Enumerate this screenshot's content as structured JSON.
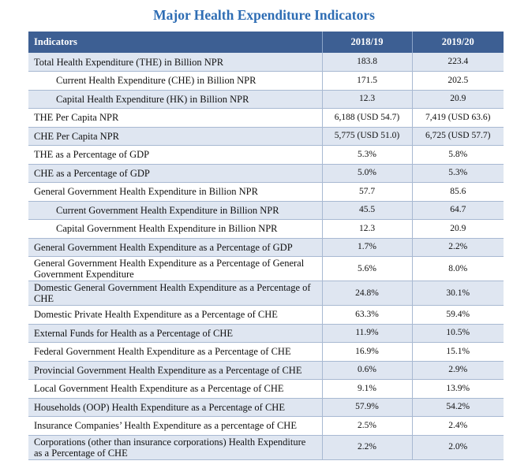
{
  "title": "Major Health Expenditure Indicators",
  "table": {
    "headers": {
      "indicator": "Indicators",
      "year1": "2018/19",
      "year2": "2019/20"
    },
    "rows": [
      {
        "label": "Total Health Expenditure (THE) in Billion NPR",
        "v1": "183.8",
        "v2": "223.4"
      },
      {
        "label": "Current Health Expenditure (CHE) in Billion NPR",
        "v1": "171.5",
        "v2": "202.5"
      },
      {
        "label": "Capital Health Expenditure (HK) in Billion NPR",
        "v1": "12.3",
        "v2": "20.9"
      },
      {
        "label": "THE Per Capita NPR",
        "v1": "6,188 (USD 54.7)",
        "v2": "7,419 (USD 63.6)"
      },
      {
        "label": "CHE Per Capita NPR",
        "v1": "5,775 (USD 51.0)",
        "v2": "6,725 (USD 57.7)"
      },
      {
        "label": "THE as a Percentage of GDP",
        "v1": "5.3%",
        "v2": "5.8%"
      },
      {
        "label": "CHE as a Percentage of GDP",
        "v1": "5.0%",
        "v2": "5.3%"
      },
      {
        "label": "General Government Health Expenditure in Billion NPR",
        "v1": "57.7",
        "v2": "85.6"
      },
      {
        "label": "Current Government Health Expenditure in Billion NPR",
        "v1": "45.5",
        "v2": "64.7"
      },
      {
        "label": "Capital Government Health Expenditure in Billion NPR",
        "v1": "12.3",
        "v2": "20.9"
      },
      {
        "label": "General Government Health Expenditure as a Percentage of GDP",
        "v1": "1.7%",
        "v2": "2.2%"
      },
      {
        "label": "General Government Health Expenditure as a Percentage of General Government Expenditure",
        "v1": "5.6%",
        "v2": "8.0%"
      },
      {
        "label": "Domestic General Government Health Expenditure as a Percentage of CHE",
        "v1": "24.8%",
        "v2": "30.1%"
      },
      {
        "label": "Domestic Private Health Expenditure as a Percentage of CHE",
        "v1": "63.3%",
        "v2": "59.4%"
      },
      {
        "label": "External Funds for Health as a Percentage of CHE",
        "v1": "11.9%",
        "v2": "10.5%"
      },
      {
        "label": "Federal Government Health Expenditure as a Percentage of CHE",
        "v1": "16.9%",
        "v2": "15.1%"
      },
      {
        "label": "Provincial Government Health Expenditure as a Percentage of CHE",
        "v1": "0.6%",
        "v2": "2.9%"
      },
      {
        "label": "Local Government Health Expenditure as a Percentage of CHE",
        "v1": "9.1%",
        "v2": "13.9%"
      },
      {
        "label": "Households (OOP) Health Expenditure as a Percentage of CHE",
        "v1": "57.9%",
        "v2": "54.2%"
      },
      {
        "label": "Insurance Companies’ Health Expenditure as a percentage of CHE",
        "v1": "2.5%",
        "v2": "2.4%"
      },
      {
        "label": "Corporations (other than insurance corporations) Health Expenditure as a Percentage of CHE",
        "v1": "2.2%",
        "v2": "2.0%"
      }
    ]
  }
}
